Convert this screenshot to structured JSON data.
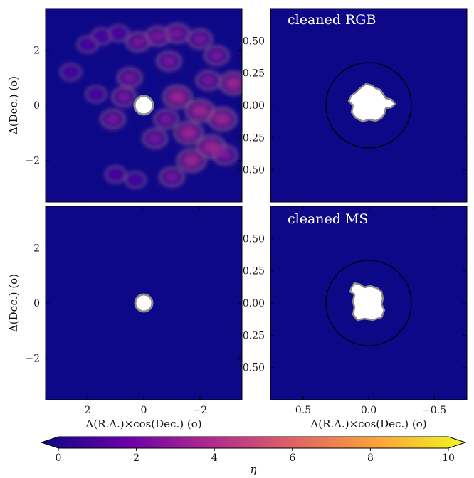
{
  "colors": {
    "background": "#0d0887",
    "contour": "#8c8c8c",
    "hole": "#ffffff",
    "circle": "#000000",
    "colormap": [
      "#0d0887",
      "#6a00a8",
      "#b12a90",
      "#e16462",
      "#fca636",
      "#f0f921"
    ]
  },
  "chart_data": [
    {
      "type": "heatmap",
      "panel": "top-left",
      "title": "",
      "ylabel": "Δ(Dec.) (o)",
      "xlim": [
        3.5,
        -3.5
      ],
      "ylim": [
        -3.5,
        3.5
      ],
      "yticks": [
        {
          "v": 2,
          "label": "2"
        },
        {
          "v": 0,
          "label": "0"
        },
        {
          "v": -2,
          "label": "−2"
        }
      ],
      "hole": {
        "x": 0,
        "y": 0,
        "r": 0.3
      },
      "overdensity_regions": [
        {
          "x": 2.0,
          "y": 2.2,
          "eta": 2
        },
        {
          "x": 1.5,
          "y": 2.5,
          "eta": 2
        },
        {
          "x": 0.9,
          "y": 2.6,
          "eta": 2
        },
        {
          "x": 0.2,
          "y": 2.3,
          "eta": 3
        },
        {
          "x": -0.5,
          "y": 2.5,
          "eta": 3
        },
        {
          "x": -1.2,
          "y": 2.6,
          "eta": 3
        },
        {
          "x": -2.0,
          "y": 2.4,
          "eta": 3
        },
        {
          "x": -2.6,
          "y": 1.8,
          "eta": 3
        },
        {
          "x": -0.9,
          "y": 1.6,
          "eta": 3
        },
        {
          "x": -2.3,
          "y": 0.9,
          "eta": 3
        },
        {
          "x": -3.2,
          "y": 0.8,
          "eta": 4
        },
        {
          "x": -1.2,
          "y": 0.3,
          "eta": 4
        },
        {
          "x": -2.0,
          "y": -0.2,
          "eta": 4
        },
        {
          "x": -2.8,
          "y": -0.5,
          "eta": 4
        },
        {
          "x": -1.6,
          "y": -1.0,
          "eta": 4
        },
        {
          "x": -2.4,
          "y": -1.5,
          "eta": 4
        },
        {
          "x": -1.7,
          "y": -2.0,
          "eta": 4
        },
        {
          "x": -2.9,
          "y": -1.8,
          "eta": 3
        },
        {
          "x": -1.0,
          "y": -2.6,
          "eta": 3
        },
        {
          "x": 0.3,
          "y": -2.7,
          "eta": 2
        },
        {
          "x": 1.0,
          "y": -2.5,
          "eta": 2
        },
        {
          "x": 1.1,
          "y": -0.5,
          "eta": 3
        },
        {
          "x": 1.7,
          "y": 0.4,
          "eta": 2
        },
        {
          "x": 0.5,
          "y": 1.0,
          "eta": 3
        },
        {
          "x": -0.4,
          "y": -1.2,
          "eta": 3
        },
        {
          "x": 0.7,
          "y": 0.3,
          "eta": 3
        },
        {
          "x": -0.8,
          "y": -0.5,
          "eta": 3
        },
        {
          "x": 2.6,
          "y": 1.2,
          "eta": 2
        }
      ]
    },
    {
      "type": "heatmap",
      "panel": "top-right",
      "title": "cleaned RGB",
      "xlim": [
        0.75,
        -0.75
      ],
      "ylim": [
        -0.75,
        0.75
      ],
      "yticks": [
        {
          "v": 0.5,
          "label": "0.50"
        },
        {
          "v": 0.25,
          "label": "0.25"
        },
        {
          "v": 0,
          "label": "0.00"
        },
        {
          "v": -0.25,
          "label": "−0.25"
        },
        {
          "v": -0.5,
          "label": "−0.50"
        }
      ],
      "circle_radius": 0.32
    },
    {
      "type": "heatmap",
      "panel": "bottom-left",
      "title": "",
      "xlabel": "Δ(R.A.)×cos(Dec.) (o)",
      "ylabel": "Δ(Dec.) (o)",
      "xlim": [
        3.5,
        -3.5
      ],
      "ylim": [
        -3.5,
        3.5
      ],
      "xticks": [
        {
          "v": 2,
          "label": "2"
        },
        {
          "v": 0,
          "label": "0"
        },
        {
          "v": -2,
          "label": "−2"
        }
      ],
      "yticks": [
        {
          "v": 2,
          "label": "2"
        },
        {
          "v": 0,
          "label": "0"
        },
        {
          "v": -2,
          "label": "−2"
        }
      ],
      "hole": {
        "x": 0,
        "y": 0,
        "r": 0.3
      }
    },
    {
      "type": "heatmap",
      "panel": "bottom-right",
      "title": "cleaned MS",
      "xlabel": "Δ(R.A.)×cos(Dec.) (o)",
      "xlim": [
        0.75,
        -0.75
      ],
      "ylim": [
        -0.75,
        0.75
      ],
      "xticks": [
        {
          "v": 0.5,
          "label": "0.5"
        },
        {
          "v": 0,
          "label": "0.0"
        },
        {
          "v": -0.5,
          "label": "−0.5"
        }
      ],
      "yticks": [
        {
          "v": 0.5,
          "label": "0.50"
        },
        {
          "v": 0.25,
          "label": "0.25"
        },
        {
          "v": 0,
          "label": "0.00"
        },
        {
          "v": -0.25,
          "label": "−0.25"
        },
        {
          "v": -0.5,
          "label": "−0.50"
        }
      ],
      "circle_radius": 0.32
    },
    {
      "type": "colorbar",
      "label": "η",
      "range": [
        0,
        10
      ],
      "ticks": [
        {
          "v": 0,
          "label": "0"
        },
        {
          "v": 2,
          "label": "2"
        },
        {
          "v": 4,
          "label": "4"
        },
        {
          "v": 6,
          "label": "6"
        },
        {
          "v": 8,
          "label": "8"
        },
        {
          "v": 10,
          "label": "10"
        }
      ]
    }
  ],
  "axis_labels": {
    "ylabel_top": "Δ(Dec.) (o)",
    "ylabel_bottom": "Δ(Dec.) (o)",
    "xlabel_left": "Δ(R.A.)×cos(Dec.) (o)",
    "xlabel_right": "Δ(R.A.)×cos(Dec.) (o)",
    "colorbar_label": "η"
  },
  "panel_titles": {
    "top_right": "cleaned RGB",
    "bottom_right": "cleaned MS"
  }
}
